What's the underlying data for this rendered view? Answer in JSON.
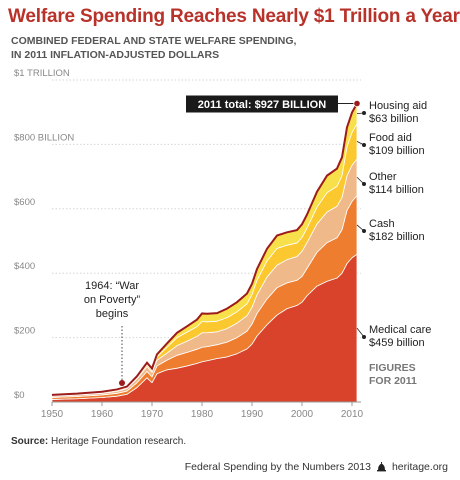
{
  "title": "Welfare Spending Reaches Nearly $1 Trillion a Year",
  "subtitle_lines": [
    "COMBINED FEDERAL AND STATE WELFARE SPENDING,",
    "IN 2011 INFLATION-ADJUSTED DOLLARS"
  ],
  "source": {
    "label": "Source:",
    "text": "Heritage Foundation research."
  },
  "footer": {
    "text": "Federal Spending by the Numbers 2013",
    "site": "heritage.org",
    "logo_icon": "liberty-bell-icon"
  },
  "chart_data": {
    "type": "area",
    "stacked": true,
    "xlim": [
      1950,
      2011
    ],
    "ylim": [
      0,
      1000
    ],
    "x_ticks": [
      1950,
      1960,
      1970,
      1980,
      1990,
      2000,
      2010
    ],
    "y_ticks": [
      {
        "value": 0,
        "label": "$0"
      },
      {
        "value": 200,
        "label": "$200"
      },
      {
        "value": 400,
        "label": "$400"
      },
      {
        "value": 600,
        "label": "$600"
      },
      {
        "value": 800,
        "label": "$800 BILLION"
      },
      {
        "value": 1000,
        "label": "$1 TRILLION"
      }
    ],
    "grid": true,
    "x": [
      1950,
      1955,
      1960,
      1963,
      1965,
      1967,
      1969,
      1970,
      1971,
      1973,
      1975,
      1977,
      1979,
      1980,
      1981,
      1983,
      1985,
      1987,
      1989,
      1990,
      1991,
      1993,
      1995,
      1997,
      1999,
      2000,
      2001,
      2003,
      2005,
      2007,
      2008,
      2009,
      2010,
      2011
    ],
    "series": [
      {
        "name": "Medical care",
        "label_lines": [
          "Medical care",
          "$459 billion"
        ],
        "color": "#d9432b",
        "values": [
          8,
          10,
          14,
          18,
          24,
          45,
          75,
          60,
          88,
          100,
          105,
          112,
          120,
          125,
          128,
          135,
          140,
          150,
          165,
          180,
          205,
          240,
          270,
          290,
          300,
          310,
          330,
          360,
          375,
          385,
          400,
          430,
          448,
          459
        ]
      },
      {
        "name": "Cash",
        "label_lines": [
          "Cash",
          "$182 billion"
        ],
        "color": "#ee7d30",
        "values": [
          6,
          7,
          8,
          9,
          10,
          15,
          20,
          18,
          24,
          30,
          40,
          42,
          44,
          45,
          44,
          43,
          46,
          50,
          55,
          62,
          70,
          80,
          85,
          80,
          78,
          80,
          85,
          105,
          120,
          125,
          135,
          165,
          175,
          182
        ]
      },
      {
        "name": "Other",
        "label_lines": [
          "Other",
          "$114 billion"
        ],
        "color": "#f0b98a",
        "values": [
          4,
          5,
          5,
          6,
          8,
          12,
          15,
          14,
          18,
          22,
          30,
          35,
          40,
          45,
          43,
          40,
          42,
          45,
          48,
          52,
          58,
          68,
          70,
          72,
          74,
          78,
          80,
          88,
          95,
          98,
          100,
          108,
          112,
          114
        ]
      },
      {
        "name": "Food aid",
        "label_lines": [
          "Food aid",
          "$109 billion"
        ],
        "color": "#fbc82f",
        "values": [
          2,
          2,
          3,
          3,
          3,
          4,
          6,
          6,
          10,
          18,
          25,
          28,
          30,
          35,
          34,
          33,
          34,
          35,
          37,
          40,
          45,
          50,
          52,
          45,
          42,
          43,
          45,
          52,
          60,
          62,
          68,
          90,
          102,
          109
        ]
      },
      {
        "name": "Housing aid",
        "label_lines": [
          "Housing aid",
          "$63 billion"
        ],
        "color": "#f8e04a",
        "values": [
          2,
          2,
          2,
          3,
          3,
          4,
          6,
          6,
          8,
          12,
          15,
          18,
          22,
          25,
          25,
          25,
          28,
          30,
          32,
          33,
          35,
          38,
          40,
          40,
          40,
          41,
          42,
          48,
          53,
          55,
          57,
          60,
          62,
          63
        ]
      }
    ],
    "total_line_color": "#9c1b1b",
    "annotations": [
      {
        "id": "total",
        "text": "2011 total: $927 BILLION",
        "x": 2011,
        "y": 927
      },
      {
        "id": "war-on-poverty",
        "text_lines": [
          "1964: “War",
          "on Poverty”",
          "begins"
        ],
        "x": 1964,
        "y": 59
      },
      {
        "id": "figures-note",
        "text_lines": [
          "FIGURES",
          "FOR 2011"
        ]
      }
    ]
  }
}
